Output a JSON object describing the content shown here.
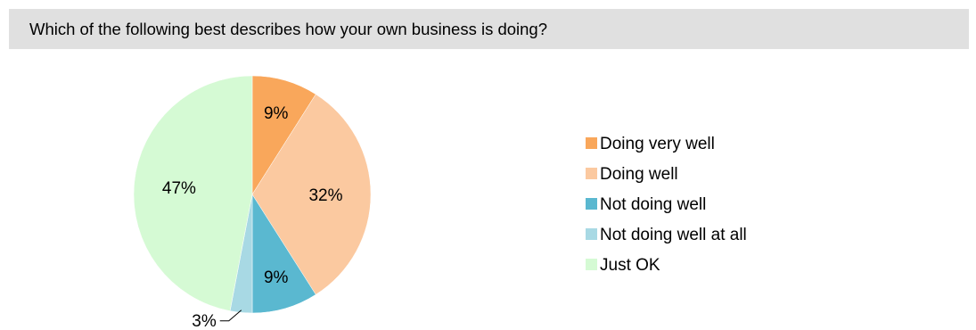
{
  "question": {
    "text": "Which of the following best describes how your own business is doing?"
  },
  "chart_data": {
    "type": "pie",
    "title": "",
    "slices": [
      {
        "label": "Doing very well",
        "value": 9,
        "display": "9%",
        "color": "#f9a75b"
      },
      {
        "label": "Doing well",
        "value": 32,
        "display": "32%",
        "color": "#fbc9a0"
      },
      {
        "label": "Not doing well",
        "value": 9,
        "display": "9%",
        "color": "#5ab8d0"
      },
      {
        "label": "Not doing well at all",
        "value": 3,
        "display": "3%",
        "color": "#a8d9e4"
      },
      {
        "label": "Just OK",
        "value": 47,
        "display": "47%",
        "color": "#d5fad4"
      }
    ],
    "start_angle": "12 o'clock",
    "direction": "clockwise",
    "legend": "right"
  }
}
